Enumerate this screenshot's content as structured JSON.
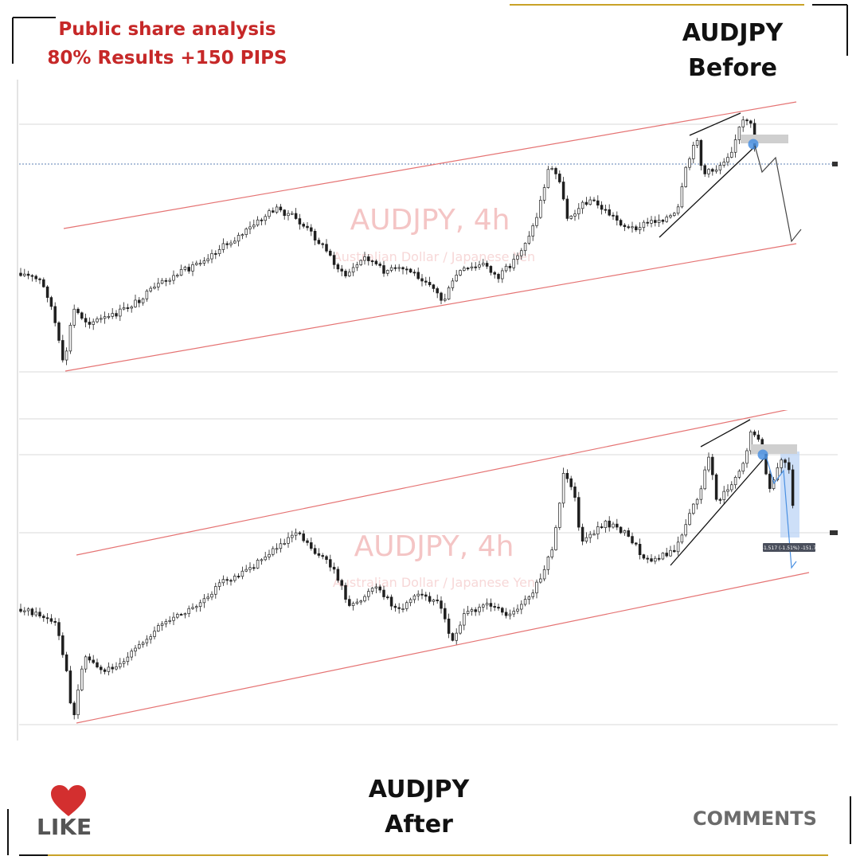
{
  "header": {
    "line1": "Public share analysis",
    "line2": "80% Results +150 PIPS",
    "color": "#c62828"
  },
  "before": {
    "symbol": "AUDJPY",
    "label": "Before",
    "watermark_title": "AUDJPY, 4h",
    "watermark_subtitle": "Australian Dollar / Japanese Yen"
  },
  "after": {
    "symbol": "AUDJPY",
    "label": "After",
    "watermark_title": "AUDJPY, 4h",
    "watermark_subtitle": "Australian Dollar / Japanese Yen",
    "measure_label": "-1.517 (-1.51%) -151.7"
  },
  "footer": {
    "like_label": "LIKE",
    "like_icon": "heart-icon",
    "comments_label": "COMMENTS"
  },
  "colors": {
    "channel": "#e57373",
    "candle": "#1f1f1f",
    "accent_red": "#c62828",
    "projection_before": "#444444",
    "projection_after": "#4a90e2",
    "highlight_zone": "#bcd4f5",
    "supply_zone": "#cfcfcf"
  }
}
